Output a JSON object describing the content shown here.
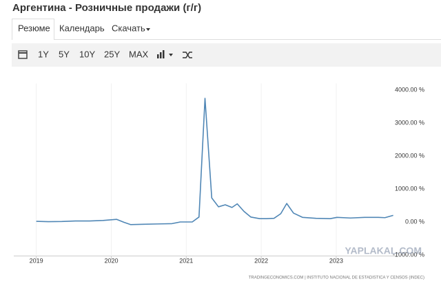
{
  "page": {
    "title": "Аргентина - Розничные продажи (г/г)",
    "tabs": [
      "Резюме",
      "Календарь",
      "Скачать"
    ],
    "toolbar": [
      "1Y",
      "5Y",
      "10Y",
      "25Y",
      "MAX"
    ]
  },
  "chart_data": {
    "type": "line",
    "x": [
      2019.0,
      2019.16,
      2019.34,
      2019.52,
      2019.71,
      2019.89,
      2020.07,
      2020.17,
      2020.26,
      2020.44,
      2020.62,
      2020.81,
      2020.92,
      2021.08,
      2021.17,
      2021.25,
      2021.34,
      2021.43,
      2021.52,
      2021.61,
      2021.68,
      2021.77,
      2021.86,
      2021.98,
      2022.07,
      2022.17,
      2022.26,
      2022.34,
      2022.43,
      2022.55,
      2022.73,
      2022.92,
      2023.01,
      2023.19,
      2023.38,
      2023.56,
      2023.65,
      2023.76
    ],
    "values": [
      20,
      10,
      15,
      30,
      30,
      45,
      80,
      -10,
      -80,
      -70,
      -60,
      -50,
      0,
      0,
      150,
      3750,
      730,
      460,
      520,
      440,
      550,
      320,
      150,
      100,
      100,
      110,
      250,
      560,
      270,
      140,
      110,
      100,
      140,
      120,
      140,
      140,
      130,
      200
    ],
    "color": "#4f86b5",
    "xlim": [
      2018.7,
      2023.8
    ],
    "xticks": [
      2019,
      2020,
      2021,
      2022,
      2023
    ],
    "ylim": [
      -1000,
      4200
    ],
    "yticks": [
      {
        "value": -1000,
        "label": "-1000.00 %"
      },
      {
        "value": 0,
        "label": "0.00 %"
      },
      {
        "value": 1000,
        "label": "1000.00 %"
      },
      {
        "value": 2000,
        "label": "2000.00 %"
      },
      {
        "value": 3000,
        "label": "3000.00 %"
      },
      {
        "value": 4000,
        "label": "4000.00 %"
      }
    ],
    "source": "TRADINGECONOMICS.COM  |  INSTITUTO NACIONAL DE ESTADISTICA Y CENSOS (INDEC)",
    "watermark": "YAPLAKAL.COM"
  }
}
